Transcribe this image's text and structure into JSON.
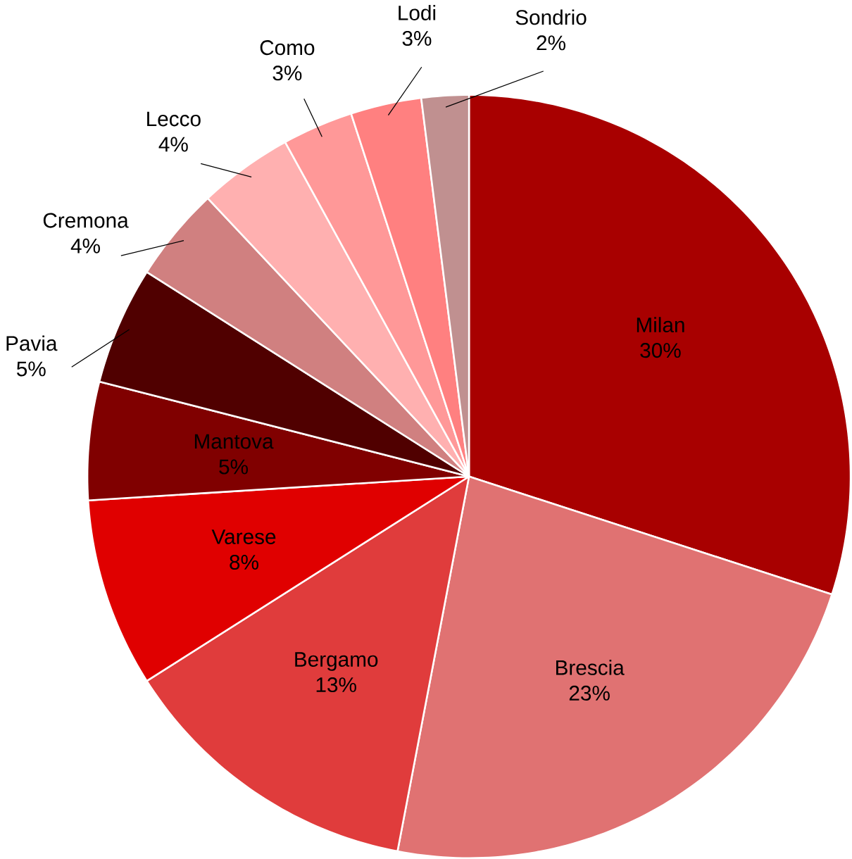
{
  "chart_data": {
    "type": "pie",
    "value_labels": [
      "30%",
      "23%",
      "13%",
      "8%",
      "5%",
      "5%",
      "4%",
      "4%",
      "3%",
      "3%",
      "2%"
    ],
    "categories": [
      "Milan",
      "Brescia",
      "Bergamo",
      "Varese",
      "Mantova",
      "Pavia",
      "Cremona",
      "Lecco",
      "Como",
      "Lodi",
      "Sondrio"
    ],
    "values": [
      30,
      23,
      13,
      8,
      5,
      5,
      4,
      4,
      3,
      3,
      2
    ],
    "colors": [
      "#a80000",
      "#e07272",
      "#e03c3c",
      "#e00000",
      "#800000",
      "#500000",
      "#d08080",
      "#ffb0b0",
      "#ff9898",
      "#ff8080",
      "#c09090"
    ]
  }
}
